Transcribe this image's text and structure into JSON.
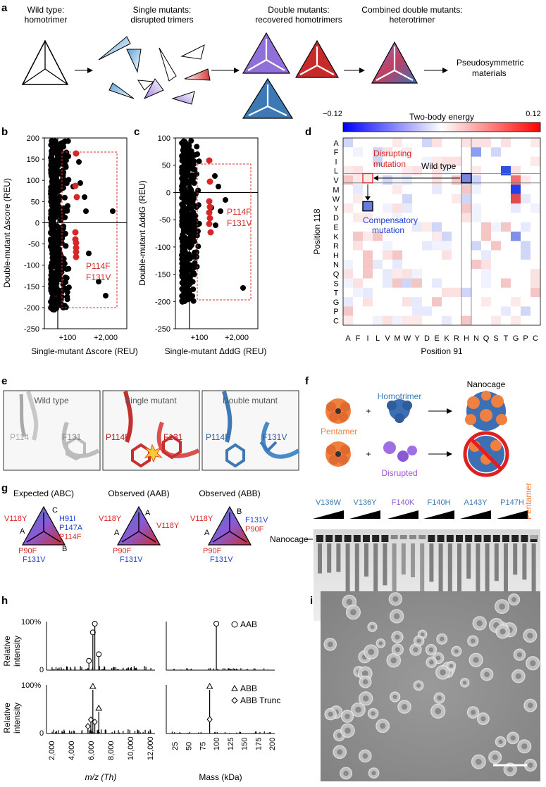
{
  "panel_labels": [
    "a",
    "b",
    "c",
    "d",
    "e",
    "f",
    "g",
    "h",
    "i"
  ],
  "panel_a": {
    "wild_type": [
      "Wild type:",
      "homotrimer"
    ],
    "single": [
      "Single mutants:",
      "disrupted trimers"
    ],
    "double": [
      "Double mutants:",
      "recovered homotrimers"
    ],
    "combined": [
      "Combined double mutants:",
      "heterotrimer"
    ],
    "end": "Pseudosymmetric materials"
  },
  "panel_b": {
    "ylabel": "Double-mutant Δscore (REU)",
    "xlabel": "Single-mutant Δscore (REU)",
    "yticks": [
      "200",
      "150",
      "100",
      "50",
      "0",
      "-50",
      "-100",
      "-150",
      "-200",
      "-250"
    ],
    "xticks": [
      "+100",
      "+2,000"
    ],
    "annot": [
      "P114F",
      "F131V"
    ]
  },
  "panel_c": {
    "ylabel": "Double-mutant ΔddG (REU)",
    "xlabel": "Single-mutant ΔddG (REU)",
    "yticks": [
      "100",
      "50",
      "0",
      "-50",
      "-100",
      "-150",
      "-200",
      "-250"
    ],
    "xticks": [
      "+100",
      "+2,000"
    ],
    "annot": [
      "P114F",
      "F131V"
    ]
  },
  "panel_d": {
    "colorbar_title": "Two-body energy",
    "cmin": "−0.12",
    "cmax": "0.12",
    "rows": [
      "A",
      "F",
      "I",
      "L",
      "V",
      "M",
      "W",
      "Y",
      "D",
      "E",
      "K",
      "R",
      "H",
      "N",
      "Q",
      "S",
      "T",
      "G",
      "P",
      "C"
    ],
    "cols": [
      "A",
      "F",
      "I",
      "L",
      "V",
      "M",
      "W",
      "Y",
      "D",
      "E",
      "K",
      "R",
      "H",
      "N",
      "Q",
      "S",
      "T",
      "G",
      "P",
      "C"
    ],
    "ylabel": "Position 118",
    "xlabel": "Position 91",
    "disrupt": [
      "Disrupting",
      "mutation"
    ],
    "wild": "Wild type",
    "comp": [
      "Compensatory",
      "mutation"
    ]
  },
  "panel_e": {
    "titles": [
      "Wild type",
      "Single mutant",
      "Double mutant"
    ],
    "wt_labels": [
      "P114",
      "F131"
    ],
    "sm_labels": [
      "P114F",
      "F131"
    ],
    "dm_labels": [
      "P114F",
      "F131V"
    ]
  },
  "panel_f": {
    "pentamer": "Pentamer",
    "homotrimer": "Homotrimer",
    "nanocage": "Nanocage",
    "disrupted": "Disrupted",
    "lanes": [
      "V136W",
      "V136Y",
      "F140K",
      "F140H",
      "A143Y",
      "P147H"
    ],
    "lane_pentamer": "Pentamer",
    "band_label": "Nanocage"
  },
  "panel_g": {
    "titles": [
      "Expected (ABC)",
      "Observed (AAB)",
      "Observed (ABB)"
    ],
    "t1": [
      "V118Y",
      "C",
      "H91I",
      "A",
      "P147A",
      "P114F",
      "P90F",
      "F131V",
      "B"
    ],
    "t2": [
      "V118Y",
      "A",
      "A",
      "V118Y",
      "P90F",
      "F131V"
    ],
    "t3": [
      "V118Y",
      "B",
      "F131V",
      "A",
      "P90F",
      "P90F",
      "F131V"
    ]
  },
  "panel_h": {
    "ylabel": [
      "Relative",
      "intensity"
    ],
    "yticks": [
      "100%",
      "0"
    ],
    "legend_top": "AAB",
    "legend_b1": "ABB",
    "legend_b2": "ABB Trunc",
    "xticks_mz": [
      "2,000",
      "4,000",
      "6,000",
      "8,000",
      "10,000",
      "12,000"
    ],
    "xticks_mass": [
      "25",
      "50",
      "75",
      "100",
      "125",
      "150",
      "175",
      "200"
    ],
    "xlabel_mz": "m/z (Th)",
    "xlabel_mass": "Mass (kDa)",
    "chart_data": {
      "type": "bar",
      "title": "",
      "series": [
        {
          "name": "AAB",
          "x": [
            5800,
            6200,
            6400,
            6800
          ],
          "y": [
            0.15,
            0.8,
            1.0,
            0.3
          ]
        },
        {
          "name": "ABB",
          "x": [
            6200,
            6800
          ],
          "y": [
            1.0,
            0.5
          ]
        },
        {
          "name": "ABB Trunc",
          "x": [
            5700,
            6000,
            6400
          ],
          "y": [
            0.1,
            0.25,
            0.2
          ]
        }
      ],
      "xlabel": "m/z (Th)",
      "ylabel": "Relative intensity",
      "xlim": [
        1500,
        12500
      ],
      "ylim": [
        0,
        1
      ]
    }
  },
  "colors": {
    "red": "#c62a2a",
    "blue": "#3d7ab5",
    "purple": "#8a5ad6",
    "orange": "#f08040",
    "grey": "#9a9a9a"
  }
}
